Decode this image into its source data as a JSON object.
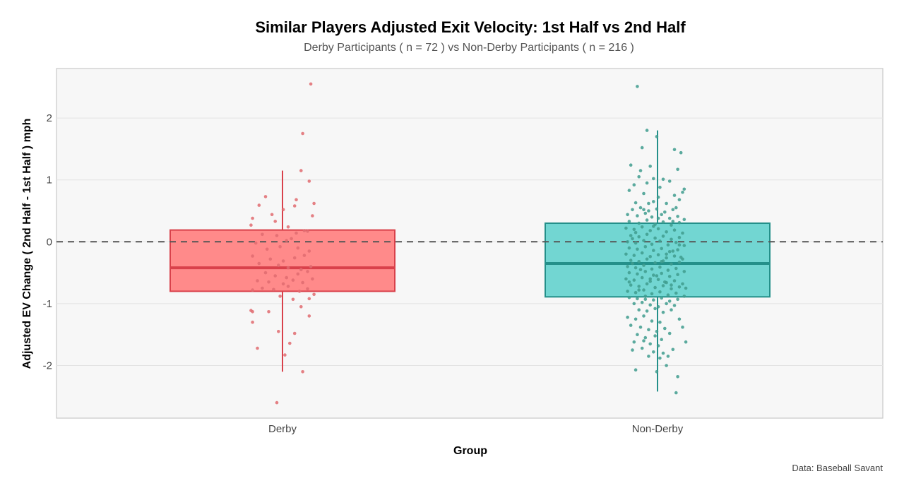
{
  "chart_data": {
    "type": "box",
    "title": "Similar Players Adjusted Exit Velocity: 1st Half vs 2nd Half",
    "subtitle": "Derby Participants ( n = 72 ) vs  Non-Derby Participants ( n = 216 )",
    "xlabel": "Group",
    "ylabel": "Adjusted EV Change ( 2nd Half - 1st Half ) mph",
    "caption": "Data: Baseball Savant",
    "categories": [
      "Derby",
      "Non-Derby"
    ],
    "ylim": [
      -2.85,
      2.8
    ],
    "y_ticks": [
      -2,
      -1,
      0,
      1,
      2
    ],
    "reference_line": 0,
    "grid": true,
    "legend": "none",
    "series": [
      {
        "category": "Derby",
        "box": {
          "min": -2.1,
          "q1": -0.8,
          "median": -0.42,
          "q3": 0.19,
          "max": 1.15
        },
        "fill_color": "#ff8a8a",
        "line_color": "#d9414b",
        "point_color": "#e06b70",
        "points": [
          [
            0.72,
            2.55
          ],
          [
            0.67,
            1.75
          ],
          [
            0.66,
            1.15
          ],
          [
            0.63,
            0.68
          ],
          [
            0.44,
            0.73
          ],
          [
            0.4,
            0.59
          ],
          [
            0.5,
            0.33
          ],
          [
            0.36,
            0.38
          ],
          [
            0.48,
            0.44
          ],
          [
            0.55,
            0.52
          ],
          [
            0.62,
            0.58
          ],
          [
            0.71,
            0.98
          ],
          [
            0.74,
            0.62
          ],
          [
            0.73,
            0.42
          ],
          [
            0.58,
            0.24
          ],
          [
            0.35,
            0.27
          ],
          [
            0.7,
            0.17
          ],
          [
            0.42,
            0.12
          ],
          [
            0.51,
            0.1
          ],
          [
            0.63,
            0.14
          ],
          [
            0.68,
            0.18
          ],
          [
            0.6,
            0.05
          ],
          [
            0.57,
            0.02
          ],
          [
            0.38,
            -0.02
          ],
          [
            0.45,
            -0.12
          ],
          [
            0.53,
            -0.08
          ],
          [
            0.64,
            -0.1
          ],
          [
            0.71,
            -0.15
          ],
          [
            0.36,
            -0.23
          ],
          [
            0.47,
            -0.28
          ],
          [
            0.55,
            -0.31
          ],
          [
            0.62,
            -0.26
          ],
          [
            0.68,
            -0.22
          ],
          [
            0.4,
            -0.35
          ],
          [
            0.52,
            -0.38
          ],
          [
            0.58,
            -0.42
          ],
          [
            0.66,
            -0.45
          ],
          [
            0.72,
            -0.4
          ],
          [
            0.44,
            -0.5
          ],
          [
            0.5,
            -0.55
          ],
          [
            0.57,
            -0.58
          ],
          [
            0.64,
            -0.52
          ],
          [
            0.7,
            -0.48
          ],
          [
            0.39,
            -0.63
          ],
          [
            0.46,
            -0.65
          ],
          [
            0.55,
            -0.68
          ],
          [
            0.61,
            -0.62
          ],
          [
            0.67,
            -0.66
          ],
          [
            0.73,
            -0.6
          ],
          [
            0.42,
            -0.75
          ],
          [
            0.49,
            -0.77
          ],
          [
            0.58,
            -0.72
          ],
          [
            0.65,
            -0.8
          ],
          [
            0.7,
            -0.76
          ],
          [
            0.36,
            -0.78
          ],
          [
            0.53,
            -0.88
          ],
          [
            0.61,
            -0.93
          ],
          [
            0.71,
            -0.92
          ],
          [
            0.74,
            -0.85
          ],
          [
            0.35,
            -1.11
          ],
          [
            0.36,
            -1.13
          ],
          [
            0.46,
            -1.13
          ],
          [
            0.66,
            -1.05
          ],
          [
            0.71,
            -1.2
          ],
          [
            0.36,
            -1.3
          ],
          [
            0.52,
            -1.45
          ],
          [
            0.62,
            -1.48
          ],
          [
            0.59,
            -1.64
          ],
          [
            0.39,
            -1.72
          ],
          [
            0.56,
            -1.83
          ],
          [
            0.67,
            -2.1
          ],
          [
            0.51,
            -2.6
          ]
        ]
      },
      {
        "category": "Non-Derby",
        "box": {
          "min": -2.42,
          "q1": -0.89,
          "median": -0.35,
          "q3": 0.3,
          "max": 1.8
        },
        "fill_color": "#72d6d2",
        "line_color": "#24908a",
        "point_color": "#3f9c8e",
        "points": [
          [
            1.32,
            2.51
          ],
          [
            1.38,
            1.8
          ],
          [
            1.44,
            1.7
          ],
          [
            1.35,
            1.52
          ],
          [
            1.55,
            1.49
          ],
          [
            1.28,
            1.24
          ],
          [
            1.4,
            1.22
          ],
          [
            1.34,
            1.15
          ],
          [
            1.57,
            1.17
          ],
          [
            1.59,
            1.44
          ],
          [
            1.33,
            1.05
          ],
          [
            1.42,
            1.02
          ],
          [
            1.48,
            1.01
          ],
          [
            1.3,
            0.92
          ],
          [
            1.38,
            0.95
          ],
          [
            1.52,
            0.98
          ],
          [
            1.61,
            0.85
          ],
          [
            1.27,
            0.83
          ],
          [
            1.36,
            0.78
          ],
          [
            1.45,
            0.72
          ],
          [
            1.55,
            0.75
          ],
          [
            1.6,
            0.8
          ],
          [
            1.31,
            0.63
          ],
          [
            1.42,
            0.65
          ],
          [
            1.5,
            0.62
          ],
          [
            1.58,
            0.68
          ],
          [
            1.29,
            0.52
          ],
          [
            1.34,
            0.55
          ],
          [
            1.39,
            0.5
          ],
          [
            1.44,
            0.53
          ],
          [
            1.49,
            0.48
          ],
          [
            1.54,
            0.52
          ],
          [
            1.26,
            0.44
          ],
          [
            1.32,
            0.42
          ],
          [
            1.37,
            0.46
          ],
          [
            1.41,
            0.4
          ],
          [
            1.47,
            0.44
          ],
          [
            1.52,
            0.38
          ],
          [
            1.57,
            0.41
          ],
          [
            1.61,
            0.36
          ],
          [
            1.27,
            0.33
          ],
          [
            1.33,
            0.3
          ],
          [
            1.38,
            0.35
          ],
          [
            1.43,
            0.28
          ],
          [
            1.48,
            0.32
          ],
          [
            1.53,
            0.27
          ],
          [
            1.58,
            0.31
          ],
          [
            1.25,
            0.22
          ],
          [
            1.3,
            0.2
          ],
          [
            1.35,
            0.24
          ],
          [
            1.4,
            0.18
          ],
          [
            1.45,
            0.21
          ],
          [
            1.5,
            0.16
          ],
          [
            1.55,
            0.19
          ],
          [
            1.6,
            0.14
          ],
          [
            1.28,
            0.1
          ],
          [
            1.33,
            0.08
          ],
          [
            1.38,
            0.12
          ],
          [
            1.43,
            0.06
          ],
          [
            1.48,
            0.09
          ],
          [
            1.53,
            0.04
          ],
          [
            1.58,
            0.07
          ],
          [
            1.26,
            0.0
          ],
          [
            1.31,
            -0.02
          ],
          [
            1.36,
            0.02
          ],
          [
            1.41,
            -0.04
          ],
          [
            1.46,
            0.01
          ],
          [
            1.51,
            -0.05
          ],
          [
            1.56,
            -0.01
          ],
          [
            1.61,
            -0.06
          ],
          [
            1.27,
            -0.1
          ],
          [
            1.32,
            -0.12
          ],
          [
            1.37,
            -0.08
          ],
          [
            1.42,
            -0.14
          ],
          [
            1.47,
            -0.11
          ],
          [
            1.52,
            -0.16
          ],
          [
            1.57,
            -0.13
          ],
          [
            1.25,
            -0.2
          ],
          [
            1.3,
            -0.22
          ],
          [
            1.35,
            -0.18
          ],
          [
            1.4,
            -0.24
          ],
          [
            1.45,
            -0.21
          ],
          [
            1.5,
            -0.26
          ],
          [
            1.55,
            -0.23
          ],
          [
            1.6,
            -0.28
          ],
          [
            1.28,
            -0.3
          ],
          [
            1.33,
            -0.32
          ],
          [
            1.38,
            -0.28
          ],
          [
            1.43,
            -0.34
          ],
          [
            1.48,
            -0.31
          ],
          [
            1.53,
            -0.36
          ],
          [
            1.58,
            -0.33
          ],
          [
            1.26,
            -0.4
          ],
          [
            1.31,
            -0.42
          ],
          [
            1.36,
            -0.38
          ],
          [
            1.41,
            -0.44
          ],
          [
            1.46,
            -0.41
          ],
          [
            1.51,
            -0.46
          ],
          [
            1.56,
            -0.43
          ],
          [
            1.61,
            -0.48
          ],
          [
            1.27,
            -0.5
          ],
          [
            1.32,
            -0.52
          ],
          [
            1.37,
            -0.48
          ],
          [
            1.42,
            -0.54
          ],
          [
            1.47,
            -0.51
          ],
          [
            1.52,
            -0.56
          ],
          [
            1.57,
            -0.53
          ],
          [
            1.25,
            -0.6
          ],
          [
            1.3,
            -0.62
          ],
          [
            1.35,
            -0.58
          ],
          [
            1.4,
            -0.64
          ],
          [
            1.45,
            -0.61
          ],
          [
            1.5,
            -0.66
          ],
          [
            1.55,
            -0.63
          ],
          [
            1.6,
            -0.68
          ],
          [
            1.28,
            -0.7
          ],
          [
            1.33,
            -0.72
          ],
          [
            1.38,
            -0.68
          ],
          [
            1.43,
            -0.74
          ],
          [
            1.48,
            -0.71
          ],
          [
            1.53,
            -0.76
          ],
          [
            1.58,
            -0.73
          ],
          [
            1.26,
            -0.8
          ],
          [
            1.31,
            -0.82
          ],
          [
            1.36,
            -0.78
          ],
          [
            1.41,
            -0.84
          ],
          [
            1.46,
            -0.81
          ],
          [
            1.51,
            -0.86
          ],
          [
            1.56,
            -0.83
          ],
          [
            1.61,
            -0.88
          ],
          [
            1.27,
            -0.9
          ],
          [
            1.32,
            -0.92
          ],
          [
            1.37,
            -0.88
          ],
          [
            1.42,
            -0.94
          ],
          [
            1.47,
            -0.91
          ],
          [
            1.52,
            -0.96
          ],
          [
            1.57,
            -0.93
          ],
          [
            1.3,
            -1.0
          ],
          [
            1.35,
            -0.98
          ],
          [
            1.4,
            -1.02
          ],
          [
            1.45,
            -1.05
          ],
          [
            1.5,
            -1.0
          ],
          [
            1.55,
            -1.03
          ],
          [
            1.33,
            -1.1
          ],
          [
            1.38,
            -1.12
          ],
          [
            1.43,
            -1.08
          ],
          [
            1.48,
            -1.14
          ],
          [
            1.53,
            -1.1
          ],
          [
            1.26,
            -1.22
          ],
          [
            1.31,
            -1.25
          ],
          [
            1.36,
            -1.2
          ],
          [
            1.41,
            -1.28
          ],
          [
            1.46,
            -1.3
          ],
          [
            1.58,
            -1.25
          ],
          [
            1.28,
            -1.35
          ],
          [
            1.34,
            -1.38
          ],
          [
            1.39,
            -1.42
          ],
          [
            1.44,
            -1.45
          ],
          [
            1.49,
            -1.4
          ],
          [
            1.6,
            -1.38
          ],
          [
            1.32,
            -1.5
          ],
          [
            1.37,
            -1.55
          ],
          [
            1.43,
            -1.52
          ],
          [
            1.47,
            -1.58
          ],
          [
            1.52,
            -1.48
          ],
          [
            1.3,
            -1.62
          ],
          [
            1.36,
            -1.6
          ],
          [
            1.4,
            -1.65
          ],
          [
            1.45,
            -1.68
          ],
          [
            1.62,
            -1.62
          ],
          [
            1.29,
            -1.75
          ],
          [
            1.35,
            -1.72
          ],
          [
            1.42,
            -1.78
          ],
          [
            1.48,
            -1.8
          ],
          [
            1.54,
            -1.74
          ],
          [
            1.39,
            -1.85
          ],
          [
            1.46,
            -1.88
          ],
          [
            1.51,
            -1.85
          ],
          [
            1.31,
            -2.07
          ],
          [
            1.44,
            -2.1
          ],
          [
            1.5,
            -2.0
          ],
          [
            1.57,
            -2.18
          ],
          [
            1.56,
            -2.44
          ],
          [
            1.29,
            -0.35
          ],
          [
            1.34,
            -0.45
          ],
          [
            1.44,
            -0.55
          ],
          [
            1.49,
            -0.65
          ],
          [
            1.54,
            -0.15
          ],
          [
            1.59,
            -0.25
          ],
          [
            1.39,
            0.62
          ],
          [
            1.46,
            0.88
          ],
          [
            1.36,
            0.52
          ],
          [
            1.54,
            0.33
          ],
          [
            1.27,
            -0.65
          ],
          [
            1.62,
            -0.75
          ],
          [
            1.31,
            0.15
          ],
          [
            1.47,
            -0.32
          ],
          [
            1.42,
            0.25
          ],
          [
            1.53,
            -0.7
          ],
          [
            1.37,
            -0.93
          ],
          [
            1.58,
            -0.05
          ],
          [
            1.45,
            0.38
          ],
          [
            1.33,
            -0.78
          ],
          [
            1.5,
            -0.2
          ],
          [
            1.4,
            -0.6
          ],
          [
            1.56,
            0.55
          ],
          [
            1.29,
            0.05
          ]
        ]
      }
    ]
  }
}
